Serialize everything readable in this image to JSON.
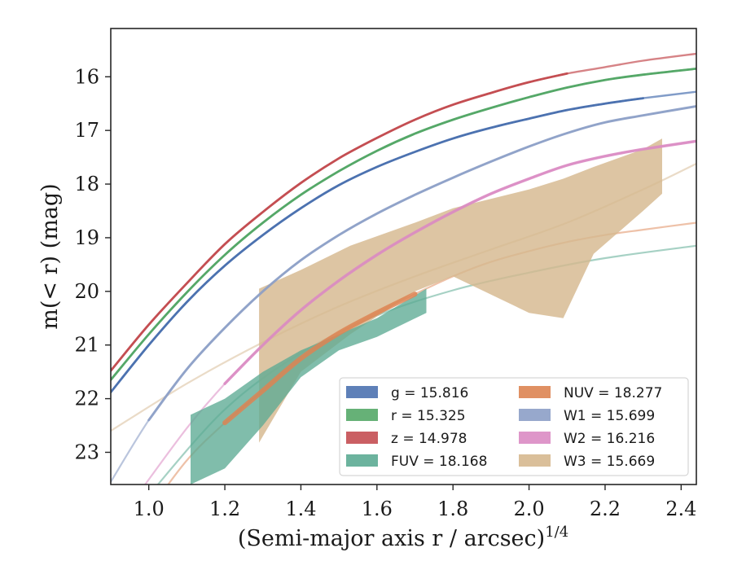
{
  "chart_data": {
    "type": "line",
    "xlabel": "(Semi-major axis r / arcsec)",
    "xlabel_sup": "1/4",
    "ylabel": "m(< r) (mag)",
    "xlim": [
      0.9,
      2.44
    ],
    "ylim": [
      23.6,
      15.1
    ],
    "y_inverted": true,
    "xticks": [
      "1.0",
      "1.2",
      "1.4",
      "1.6",
      "1.8",
      "2.0",
      "2.2",
      "2.4"
    ],
    "yticks": [
      "16",
      "17",
      "18",
      "19",
      "20",
      "21",
      "22",
      "23"
    ],
    "legend_position": "lower-right",
    "series": [
      {
        "name": "g",
        "value": "15.816",
        "legend": "g = 15.816",
        "color": "#4c72b0",
        "data_x_range": [
          0.9,
          2.36
        ],
        "x": [
          0.9,
          1.0,
          1.1,
          1.2,
          1.3,
          1.4,
          1.5,
          1.6,
          1.7,
          1.8,
          1.9,
          2.0,
          2.1,
          2.2,
          2.3,
          2.44
        ],
        "y": [
          21.88,
          21.0,
          20.2,
          19.52,
          18.95,
          18.45,
          18.02,
          17.68,
          17.4,
          17.15,
          16.95,
          16.78,
          16.62,
          16.5,
          16.4,
          16.28
        ]
      },
      {
        "name": "r",
        "value": "15.325",
        "legend": "r = 15.325",
        "color": "#55a868",
        "data_x_range": [
          0.9,
          2.44
        ],
        "x": [
          0.9,
          1.0,
          1.1,
          1.2,
          1.3,
          1.4,
          1.5,
          1.6,
          1.7,
          1.8,
          1.9,
          2.0,
          2.1,
          2.2,
          2.3,
          2.44
        ],
        "y": [
          21.65,
          20.8,
          20.02,
          19.32,
          18.72,
          18.2,
          17.76,
          17.38,
          17.06,
          16.8,
          16.58,
          16.38,
          16.2,
          16.06,
          15.96,
          15.85
        ]
      },
      {
        "name": "z",
        "value": "14.978",
        "legend": "z = 14.978",
        "color": "#c44e52",
        "data_x_range": [
          0.9,
          2.17
        ],
        "x": [
          0.9,
          1.0,
          1.1,
          1.2,
          1.3,
          1.4,
          1.5,
          1.6,
          1.7,
          1.8,
          1.9,
          2.0,
          2.1,
          2.2,
          2.3,
          2.44
        ],
        "y": [
          21.48,
          20.62,
          19.85,
          19.12,
          18.52,
          17.98,
          17.52,
          17.14,
          16.8,
          16.52,
          16.3,
          16.1,
          15.94,
          15.82,
          15.7,
          15.57
        ]
      },
      {
        "name": "FUV",
        "value": "18.168",
        "legend": "FUV = 18.168",
        "color": "#5cab94",
        "band": true,
        "data_x_range": [
          1.11,
          1.73
        ],
        "x": [
          1.11,
          1.2,
          1.3,
          1.4,
          1.5,
          1.6,
          1.73
        ],
        "y_low": [
          23.6,
          23.3,
          22.5,
          21.6,
          21.1,
          20.85,
          20.4
        ],
        "y_high": [
          22.3,
          22.0,
          21.5,
          21.1,
          20.8,
          20.5,
          19.95
        ],
        "line_x": [
          1.0,
          1.2,
          1.4,
          1.6,
          1.8,
          2.0,
          2.2,
          2.44
        ],
        "line_y": [
          23.8,
          22.2,
          21.15,
          20.45,
          19.98,
          19.65,
          19.38,
          19.15
        ]
      },
      {
        "name": "NUV",
        "value": "18.277",
        "legend": "NUV = 18.277",
        "color": "#dd8452",
        "data_x_range": [
          1.11,
          1.75
        ],
        "x": [
          1.0,
          1.1,
          1.2,
          1.3,
          1.4,
          1.5,
          1.6,
          1.7,
          1.8,
          1.9,
          2.0,
          2.1,
          2.2,
          2.3,
          2.44
        ],
        "y": [
          24.1,
          23.15,
          22.45,
          21.85,
          21.25,
          20.78,
          20.4,
          20.05,
          19.72,
          19.45,
          19.25,
          19.08,
          18.95,
          18.85,
          18.72
        ]
      },
      {
        "name": "W1",
        "value": "15.699",
        "legend": "W1 = 15.699",
        "color": "#8c9fc7",
        "data_x_range": [
          1.0,
          2.44
        ],
        "x": [
          0.9,
          1.0,
          1.1,
          1.2,
          1.3,
          1.4,
          1.5,
          1.6,
          1.7,
          1.8,
          1.9,
          2.0,
          2.1,
          2.2,
          2.3,
          2.44
        ],
        "y": [
          23.55,
          22.4,
          21.45,
          20.68,
          20.0,
          19.42,
          18.95,
          18.55,
          18.2,
          17.88,
          17.58,
          17.3,
          17.05,
          16.85,
          16.72,
          16.55
        ]
      },
      {
        "name": "W2",
        "value": "16.216",
        "legend": "W2 = 16.216",
        "color": "#da8bc3",
        "data_x_range": [
          1.2,
          2.44
        ],
        "x": [
          0.98,
          1.1,
          1.2,
          1.3,
          1.4,
          1.5,
          1.6,
          1.7,
          1.8,
          1.9,
          2.0,
          2.1,
          2.2,
          2.3,
          2.44
        ],
        "y": [
          23.7,
          22.55,
          21.72,
          21.0,
          20.35,
          19.8,
          19.32,
          18.9,
          18.52,
          18.18,
          17.9,
          17.65,
          17.48,
          17.35,
          17.2
        ]
      },
      {
        "name": "W3",
        "value": "15.669",
        "legend": "W3 = 15.669",
        "color": "#d6b88f",
        "band": true,
        "data_x_range": [
          1.29,
          2.35
        ],
        "x": [
          1.29,
          1.4,
          1.53,
          1.7,
          1.8,
          2.0,
          2.09,
          2.17,
          2.3,
          2.35
        ],
        "y_low": [
          22.82,
          21.5,
          20.8,
          20.0,
          19.72,
          20.4,
          20.5,
          19.3,
          18.5,
          18.18
        ],
        "y_high": [
          19.95,
          19.6,
          19.15,
          18.72,
          18.45,
          18.1,
          17.9,
          17.68,
          17.35,
          17.15
        ],
        "line_x": [
          0.9,
          1.1,
          1.3,
          1.5,
          1.7,
          1.9,
          2.1,
          2.3,
          2.44
        ],
        "line_y": [
          22.6,
          21.72,
          20.95,
          20.28,
          19.72,
          19.22,
          18.72,
          18.1,
          17.62
        ]
      }
    ]
  }
}
